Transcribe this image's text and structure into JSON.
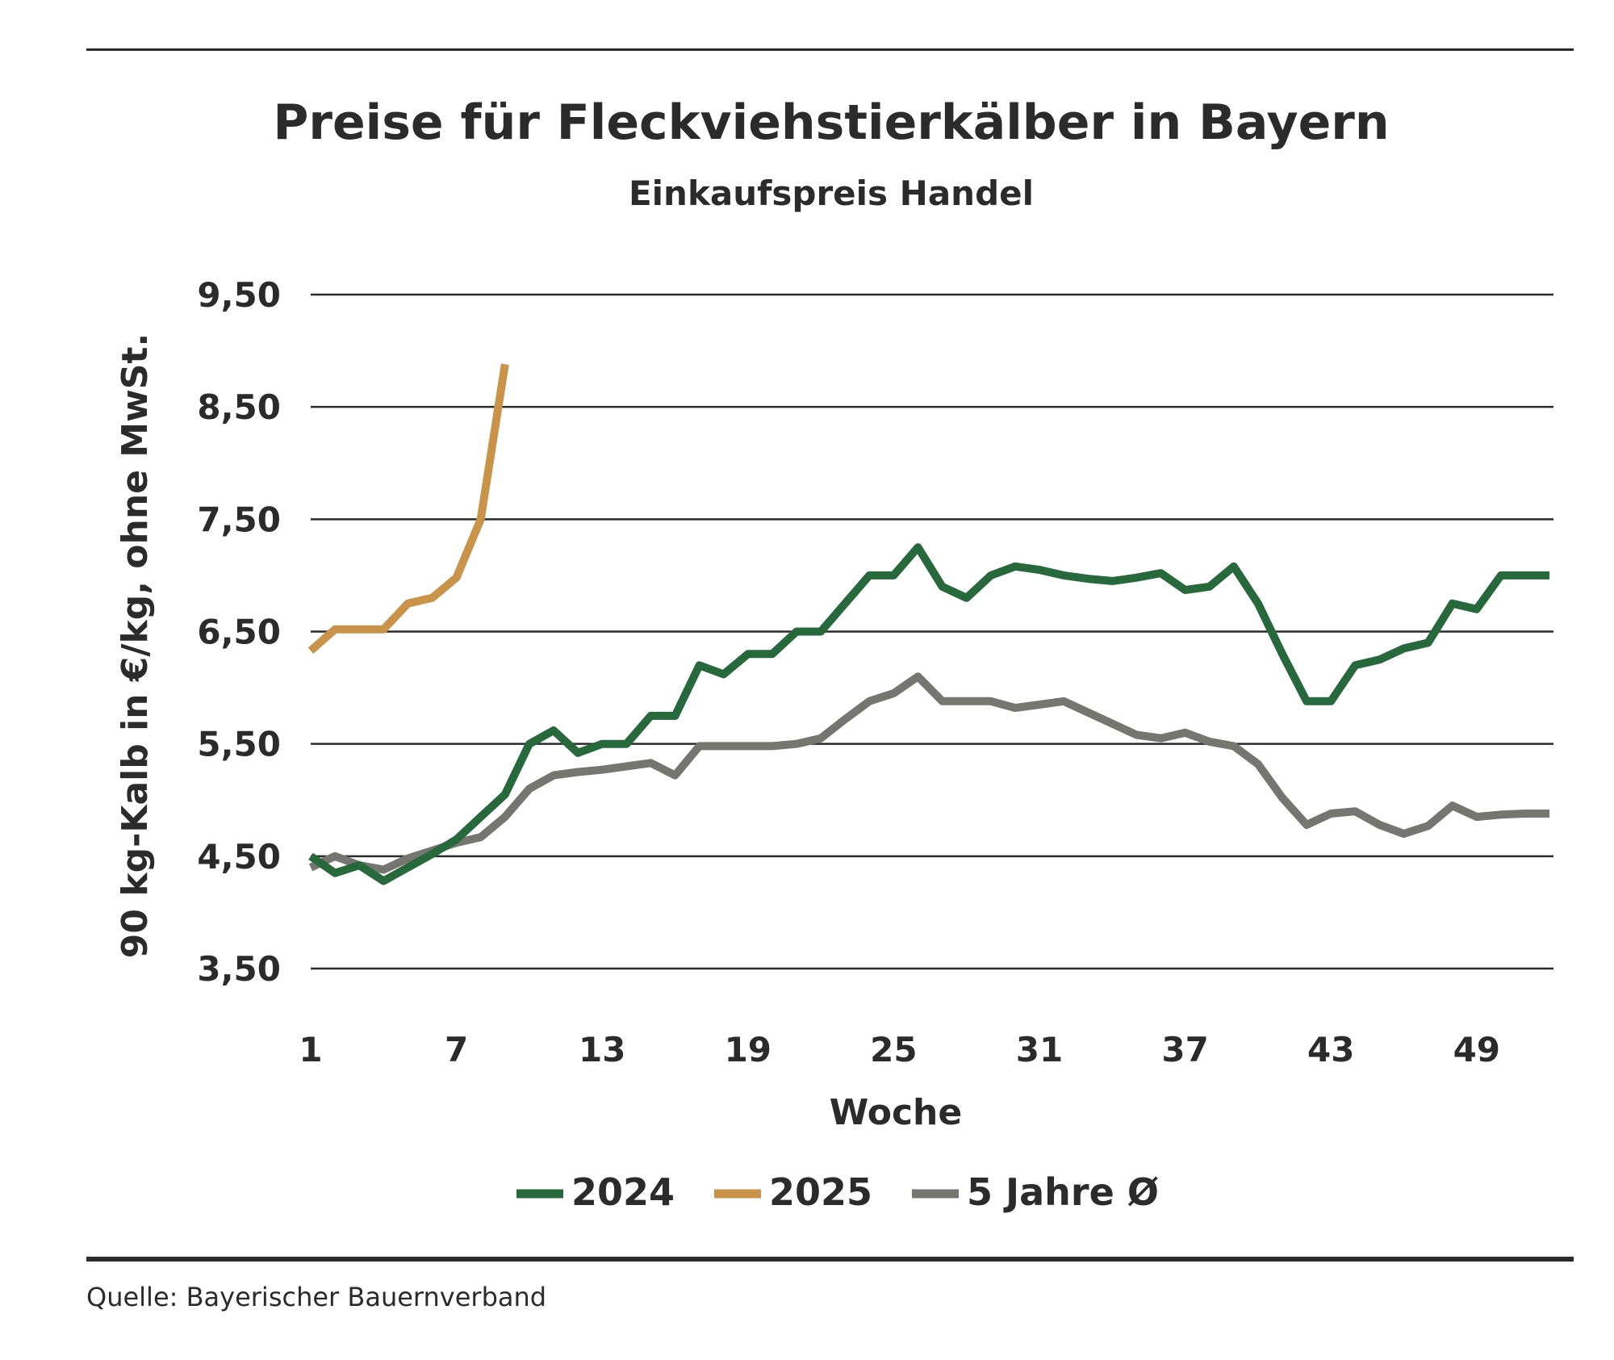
{
  "title": "Preise für Fleckviehstierkälber in Bayern",
  "subtitle": "Einkaufspreis Handel",
  "source": "Quelle: Bayerischer Bauernverband",
  "chart_data": {
    "type": "line",
    "title": "Preise für Fleckviehstierkälber in Bayern",
    "subtitle": "Einkaufspreis Handel",
    "xlabel": "Woche",
    "ylabel": "90 kg-Kalb in €/kg, ohne MwSt.",
    "x_ticks": [
      "1",
      "7",
      "13",
      "19",
      "25",
      "31",
      "37",
      "43",
      "49"
    ],
    "y_ticks": [
      "3,50",
      "4,50",
      "5,50",
      "6,50",
      "7,50",
      "8,50",
      "9,50"
    ],
    "xlim": [
      1,
      52
    ],
    "ylim": [
      3.5,
      9.5
    ],
    "grid": "horizontal",
    "legend_position": "bottom",
    "series": [
      {
        "name": "2024",
        "color": "#27693c",
        "x": [
          1,
          2,
          3,
          4,
          5,
          6,
          7,
          8,
          9,
          10,
          11,
          12,
          13,
          14,
          15,
          16,
          17,
          18,
          19,
          20,
          21,
          22,
          23,
          24,
          25,
          26,
          27,
          28,
          29,
          30,
          31,
          32,
          33,
          34,
          35,
          36,
          37,
          38,
          39,
          40,
          41,
          42,
          43,
          44,
          45,
          46,
          47,
          48,
          49,
          50,
          51,
          52
        ],
        "values": [
          4.5,
          4.35,
          4.42,
          4.28,
          4.4,
          4.52,
          4.65,
          4.85,
          5.05,
          5.5,
          5.62,
          5.42,
          5.5,
          5.5,
          5.75,
          5.75,
          6.2,
          6.12,
          6.3,
          6.3,
          6.5,
          6.5,
          6.75,
          7.0,
          7.0,
          7.25,
          6.9,
          6.8,
          7.0,
          7.08,
          7.05,
          7.0,
          6.97,
          6.95,
          6.98,
          7.02,
          6.87,
          6.9,
          7.08,
          6.75,
          6.3,
          5.88,
          5.88,
          6.2,
          6.25,
          6.35,
          6.4,
          6.75,
          6.7,
          7.0,
          7.0,
          7.0
        ]
      },
      {
        "name": "2025",
        "color": "#c9944a",
        "x": [
          1,
          2,
          3,
          4,
          5,
          6,
          7,
          8,
          9
        ],
        "values": [
          6.33,
          6.52,
          6.52,
          6.52,
          6.75,
          6.8,
          6.98,
          7.5,
          8.88
        ]
      },
      {
        "name": "5 Jahre Ø",
        "color": "#767670",
        "x": [
          1,
          2,
          3,
          4,
          5,
          6,
          7,
          8,
          9,
          10,
          11,
          12,
          13,
          14,
          15,
          16,
          17,
          18,
          19,
          20,
          21,
          22,
          23,
          24,
          25,
          26,
          27,
          28,
          29,
          30,
          31,
          32,
          33,
          34,
          35,
          36,
          37,
          38,
          39,
          40,
          41,
          42,
          43,
          44,
          45,
          46,
          47,
          48,
          49,
          50,
          51,
          52
        ],
        "values": [
          4.4,
          4.5,
          4.42,
          4.38,
          4.48,
          4.55,
          4.62,
          4.67,
          4.85,
          5.1,
          5.22,
          5.25,
          5.27,
          5.3,
          5.33,
          5.22,
          5.48,
          5.48,
          5.48,
          5.48,
          5.5,
          5.55,
          5.72,
          5.88,
          5.95,
          6.1,
          5.88,
          5.88,
          5.88,
          5.82,
          5.85,
          5.88,
          5.78,
          5.68,
          5.58,
          5.55,
          5.6,
          5.52,
          5.48,
          5.32,
          5.02,
          4.78,
          4.88,
          4.9,
          4.78,
          4.7,
          4.77,
          4.95,
          4.85,
          4.87,
          4.88,
          4.88
        ]
      }
    ]
  }
}
